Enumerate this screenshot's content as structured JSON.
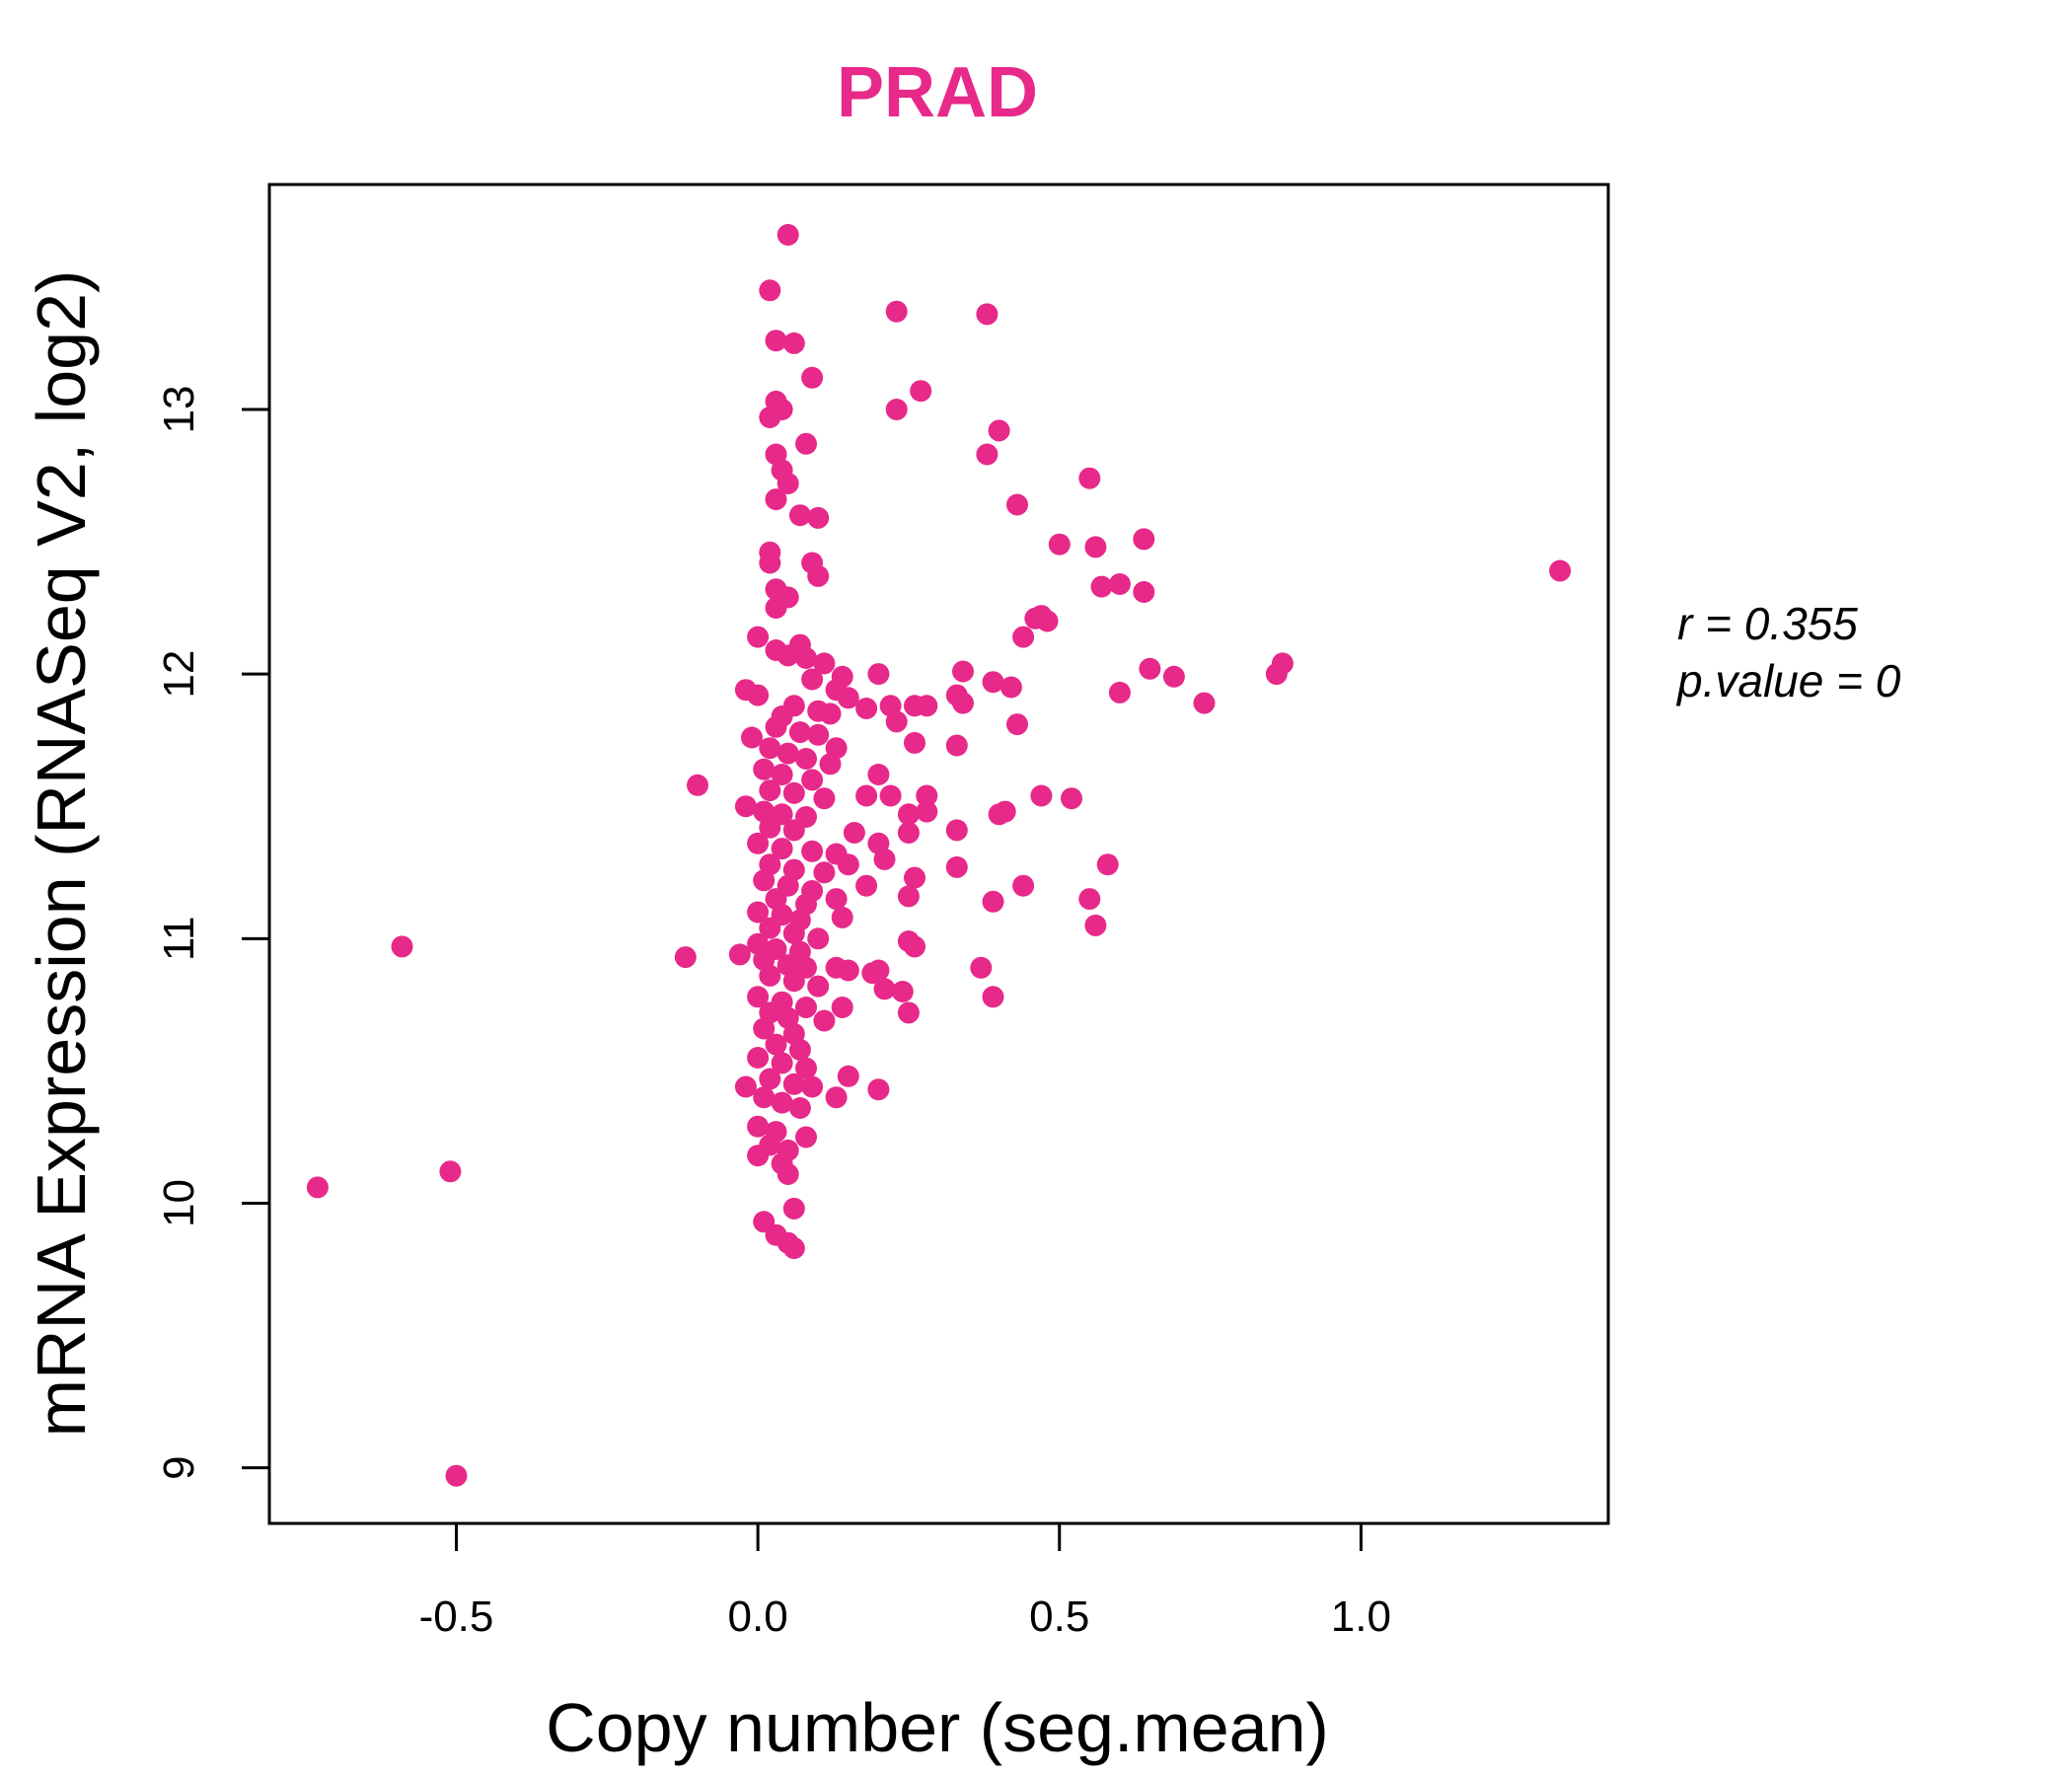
{
  "chart_data": {
    "type": "scatter",
    "title": "PRAD",
    "xlabel": "Copy number (seg.mean)",
    "ylabel": "mRNA Expression (RNASeq V2, log2)",
    "xlim": [
      -0.81,
      1.41
    ],
    "ylim": [
      8.79,
      13.85
    ],
    "x_ticks": [
      -0.5,
      0.0,
      0.5,
      1.0
    ],
    "x_tick_labels": [
      "-0.5",
      "0.0",
      "0.5",
      "1.0"
    ],
    "y_ticks": [
      9,
      10,
      11,
      12,
      13
    ],
    "y_tick_labels": [
      "9",
      "10",
      "11",
      "12",
      "13"
    ],
    "grid": false,
    "annotation": {
      "r_text": "r = 0.355",
      "p_text": "p.value = 0"
    },
    "colors": {
      "points": "#E7298A",
      "title": "#E7298A",
      "axes": "#000000"
    },
    "points": [
      [
        -0.73,
        10.06
      ],
      [
        -0.59,
        10.97
      ],
      [
        -0.51,
        10.12
      ],
      [
        -0.5,
        8.97
      ],
      [
        -0.12,
        10.93
      ],
      [
        -0.1,
        11.58
      ],
      [
        0.05,
        13.66
      ],
      [
        0.02,
        13.45
      ],
      [
        0.06,
        13.25
      ],
      [
        0.03,
        13.26
      ],
      [
        0.09,
        13.12
      ],
      [
        0.03,
        13.03
      ],
      [
        0.04,
        13.0
      ],
      [
        0.02,
        12.97
      ],
      [
        0.08,
        12.87
      ],
      [
        0.03,
        12.83
      ],
      [
        0.04,
        12.77
      ],
      [
        0.05,
        12.72
      ],
      [
        0.03,
        12.66
      ],
      [
        0.07,
        12.6
      ],
      [
        0.1,
        12.59
      ],
      [
        0.02,
        12.46
      ],
      [
        0.02,
        12.42
      ],
      [
        0.09,
        12.42
      ],
      [
        0.1,
        12.37
      ],
      [
        0.03,
        12.32
      ],
      [
        0.05,
        12.29
      ],
      [
        0.03,
        12.25
      ],
      [
        0.0,
        12.14
      ],
      [
        0.07,
        12.11
      ],
      [
        0.03,
        12.09
      ],
      [
        0.05,
        12.07
      ],
      [
        0.08,
        12.06
      ],
      [
        0.11,
        12.04
      ],
      [
        0.09,
        11.98
      ],
      [
        0.14,
        11.99
      ],
      [
        0.2,
        12.0
      ],
      [
        0.13,
        11.94
      ],
      [
        0.15,
        11.91
      ],
      [
        -0.02,
        11.94
      ],
      [
        0.0,
        11.92
      ],
      [
        0.06,
        11.88
      ],
      [
        0.1,
        11.86
      ],
      [
        0.12,
        11.85
      ],
      [
        0.18,
        11.87
      ],
      [
        0.22,
        11.88
      ],
      [
        0.26,
        11.88
      ],
      [
        0.28,
        11.88
      ],
      [
        0.23,
        11.82
      ],
      [
        0.04,
        11.84
      ],
      [
        0.03,
        11.8
      ],
      [
        0.07,
        11.78
      ],
      [
        0.1,
        11.77
      ],
      [
        -0.01,
        11.76
      ],
      [
        0.13,
        11.72
      ],
      [
        0.26,
        11.74
      ],
      [
        0.33,
        11.73
      ],
      [
        0.02,
        11.72
      ],
      [
        0.05,
        11.7
      ],
      [
        0.08,
        11.68
      ],
      [
        0.12,
        11.66
      ],
      [
        0.01,
        11.64
      ],
      [
        0.04,
        11.62
      ],
      [
        0.09,
        11.6
      ],
      [
        0.2,
        11.62
      ],
      [
        0.02,
        11.56
      ],
      [
        0.06,
        11.55
      ],
      [
        0.11,
        11.53
      ],
      [
        0.18,
        11.54
      ],
      [
        0.22,
        11.54
      ],
      [
        0.28,
        11.54
      ],
      [
        -0.02,
        11.5
      ],
      [
        0.01,
        11.48
      ],
      [
        0.04,
        11.47
      ],
      [
        0.08,
        11.46
      ],
      [
        0.25,
        11.47
      ],
      [
        0.28,
        11.48
      ],
      [
        0.4,
        11.47
      ],
      [
        0.41,
        11.48
      ],
      [
        0.47,
        11.54
      ],
      [
        0.52,
        11.53
      ],
      [
        0.02,
        11.42
      ],
      [
        0.06,
        11.41
      ],
      [
        0.16,
        11.4
      ],
      [
        0.25,
        11.4
      ],
      [
        0.33,
        11.41
      ],
      [
        0.0,
        11.36
      ],
      [
        0.04,
        11.34
      ],
      [
        0.09,
        11.33
      ],
      [
        0.13,
        11.32
      ],
      [
        0.2,
        11.36
      ],
      [
        0.21,
        11.3
      ],
      [
        0.02,
        11.28
      ],
      [
        0.06,
        11.26
      ],
      [
        0.11,
        11.25
      ],
      [
        0.15,
        11.28
      ],
      [
        0.26,
        11.23
      ],
      [
        0.33,
        11.27
      ],
      [
        0.01,
        11.22
      ],
      [
        0.05,
        11.2
      ],
      [
        0.09,
        11.18
      ],
      [
        0.18,
        11.2
      ],
      [
        0.44,
        11.2
      ],
      [
        0.03,
        11.15
      ],
      [
        0.08,
        11.13
      ],
      [
        0.13,
        11.15
      ],
      [
        0.25,
        11.16
      ],
      [
        0.55,
        11.15
      ],
      [
        0.58,
        11.28
      ],
      [
        0.0,
        11.1
      ],
      [
        0.04,
        11.09
      ],
      [
        0.07,
        11.07
      ],
      [
        0.14,
        11.08
      ],
      [
        0.39,
        11.14
      ],
      [
        0.02,
        11.04
      ],
      [
        0.06,
        11.02
      ],
      [
        0.1,
        11.0
      ],
      [
        0.25,
        10.99
      ],
      [
        0.56,
        11.05
      ],
      [
        0.0,
        10.98
      ],
      [
        0.03,
        10.96
      ],
      [
        0.07,
        10.95
      ],
      [
        0.26,
        10.97
      ],
      [
        -0.03,
        10.94
      ],
      [
        0.01,
        10.92
      ],
      [
        0.05,
        10.9
      ],
      [
        0.08,
        10.89
      ],
      [
        0.13,
        10.89
      ],
      [
        0.15,
        10.88
      ],
      [
        0.19,
        10.87
      ],
      [
        0.2,
        10.88
      ],
      [
        0.37,
        10.89
      ],
      [
        0.02,
        10.86
      ],
      [
        0.06,
        10.84
      ],
      [
        0.1,
        10.82
      ],
      [
        0.21,
        10.81
      ],
      [
        0.24,
        10.8
      ],
      [
        0.39,
        10.78
      ],
      [
        0.0,
        10.78
      ],
      [
        0.04,
        10.76
      ],
      [
        0.08,
        10.74
      ],
      [
        0.14,
        10.74
      ],
      [
        0.25,
        10.72
      ],
      [
        0.02,
        10.72
      ],
      [
        0.05,
        10.7
      ],
      [
        0.11,
        10.69
      ],
      [
        0.01,
        10.66
      ],
      [
        0.06,
        10.64
      ],
      [
        0.03,
        10.6
      ],
      [
        0.07,
        10.58
      ],
      [
        0.0,
        10.55
      ],
      [
        0.04,
        10.53
      ],
      [
        0.08,
        10.51
      ],
      [
        0.15,
        10.48
      ],
      [
        0.02,
        10.47
      ],
      [
        0.06,
        10.45
      ],
      [
        -0.02,
        10.44
      ],
      [
        0.09,
        10.44
      ],
      [
        0.2,
        10.43
      ],
      [
        0.13,
        10.4
      ],
      [
        0.01,
        10.4
      ],
      [
        0.04,
        10.38
      ],
      [
        0.07,
        10.36
      ],
      [
        0.0,
        10.29
      ],
      [
        0.03,
        10.27
      ],
      [
        0.08,
        10.25
      ],
      [
        0.02,
        10.22
      ],
      [
        0.05,
        10.2
      ],
      [
        0.0,
        10.18
      ],
      [
        0.04,
        10.15
      ],
      [
        0.05,
        10.11
      ],
      [
        0.06,
        9.98
      ],
      [
        0.01,
        9.93
      ],
      [
        0.03,
        9.88
      ],
      [
        0.05,
        9.85
      ],
      [
        0.06,
        9.83
      ],
      [
        0.23,
        13.37
      ],
      [
        0.38,
        13.36
      ],
      [
        0.27,
        13.07
      ],
      [
        0.23,
        13.0
      ],
      [
        0.4,
        12.92
      ],
      [
        0.38,
        12.83
      ],
      [
        0.55,
        12.74
      ],
      [
        0.43,
        12.64
      ],
      [
        0.5,
        12.49
      ],
      [
        0.56,
        12.48
      ],
      [
        0.64,
        12.51
      ],
      [
        0.57,
        12.33
      ],
      [
        0.6,
        12.34
      ],
      [
        0.64,
        12.31
      ],
      [
        0.47,
        12.22
      ],
      [
        0.48,
        12.2
      ],
      [
        0.46,
        12.21
      ],
      [
        0.44,
        12.14
      ],
      [
        0.34,
        12.01
      ],
      [
        0.39,
        11.97
      ],
      [
        0.42,
        11.95
      ],
      [
        0.33,
        11.92
      ],
      [
        0.34,
        11.89
      ],
      [
        0.43,
        11.81
      ],
      [
        0.65,
        12.02
      ],
      [
        0.69,
        11.99
      ],
      [
        0.6,
        11.93
      ],
      [
        0.74,
        11.89
      ],
      [
        0.86,
        12.0
      ],
      [
        0.87,
        12.04
      ],
      [
        1.33,
        12.39
      ]
    ]
  }
}
